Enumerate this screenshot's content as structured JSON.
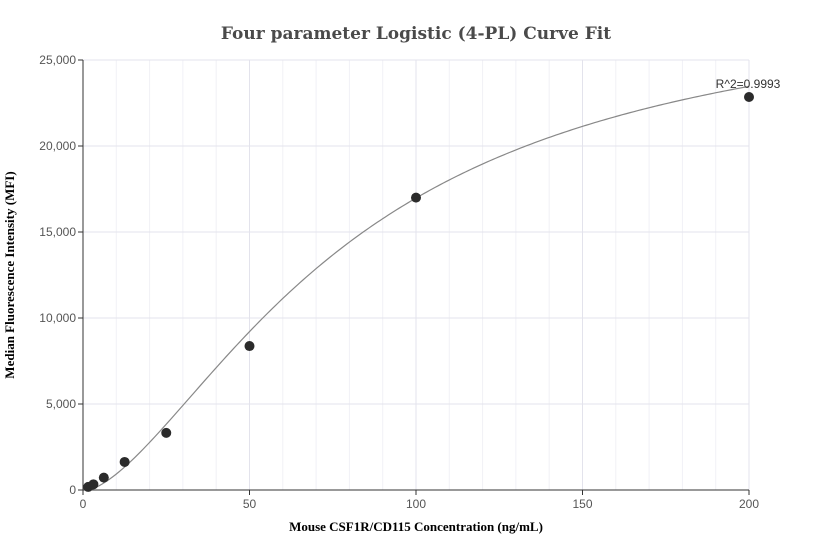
{
  "chart_data": {
    "type": "scatter",
    "title": "Four parameter Logistic (4-PL) Curve Fit",
    "xlabel": "Mouse CSF1R/CD115 Concentration (ng/mL)",
    "ylabel": "Median Fluorescence Intensity (MFI)",
    "xlim": [
      0,
      200
    ],
    "ylim": [
      0,
      25000
    ],
    "xticks": [
      0,
      50,
      100,
      150,
      200
    ],
    "xtick_labels": [
      "0",
      "50",
      "100",
      "150",
      "200"
    ],
    "yticks": [
      0,
      5000,
      10000,
      15000,
      20000,
      25000
    ],
    "ytick_labels": [
      "0",
      "5,000",
      "10,000",
      "15,000",
      "20,000",
      "25,000"
    ],
    "grid": true,
    "series": [
      {
        "points": [
          {
            "x": 1.5625,
            "y": 180
          },
          {
            "x": 3.125,
            "y": 330
          },
          {
            "x": 6.25,
            "y": 720
          },
          {
            "x": 12.5,
            "y": 1630
          },
          {
            "x": 25,
            "y": 3320
          },
          {
            "x": 50,
            "y": 8370
          },
          {
            "x": 100,
            "y": 17000
          },
          {
            "x": 200,
            "y": 22850
          }
        ],
        "color": "#2b2b2b"
      }
    ],
    "fit_curve": {
      "model": "4PL",
      "a": -75,
      "b": 1.6,
      "c": 80,
      "d": 28900,
      "color": "#888888"
    },
    "annotation": {
      "text": "R^2=0.9993",
      "x": 200,
      "y": 22850
    }
  }
}
